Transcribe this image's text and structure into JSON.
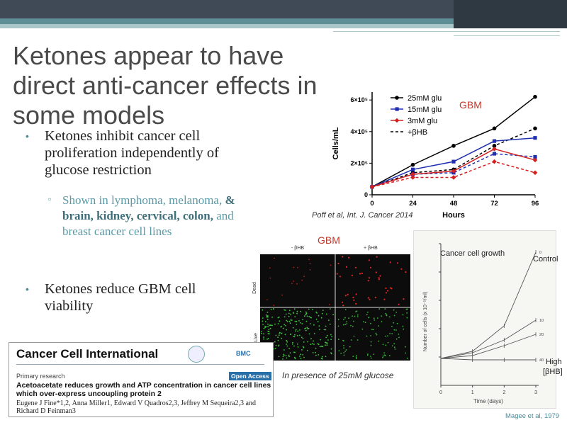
{
  "slide": {
    "title": "Ketones appear to have direct anti-cancer effects in some models",
    "bullets": [
      {
        "text": "Ketones inhibit cancer cell proliferation independently of glucose restriction"
      },
      {
        "text": "Ketones reduce GBM cell viability"
      }
    ],
    "sub_bullet": {
      "pre": "Shown in lymphoma, melanoma,",
      "bold": "& brain, kidney, cervical, colon,",
      "post": "and breast cancer cell lines"
    },
    "sub_marker": "▫",
    "bullet_marker": "•"
  },
  "chart_top": {
    "label": "GBM",
    "citation": "Poff et al, Int. J. Cancer 2014",
    "chart_data": {
      "type": "line",
      "xlabel": "Hours",
      "ylabel": "Cells/mL",
      "x": [
        0,
        24,
        48,
        72,
        96
      ],
      "x_ticks": [
        "0",
        "24",
        "48",
        "72",
        "96"
      ],
      "y_ticks": [
        "0",
        "2×10⁵",
        "4×10⁵",
        "6×10⁵"
      ],
      "ylim": [
        0,
        650000
      ],
      "legend_placement": "top-left",
      "series": [
        {
          "name": "25mM glu",
          "values": [
            50000,
            190000,
            310000,
            420000,
            620000
          ],
          "color": "#000000"
        },
        {
          "name": "25mM glu +βHB",
          "values": [
            50000,
            140000,
            160000,
            310000,
            420000
          ],
          "color": "#000000"
        },
        {
          "name": "15mM glu",
          "values": [
            50000,
            160000,
            210000,
            340000,
            360000
          ],
          "color": "#1f2fb0"
        },
        {
          "name": "15mM glu +βHB",
          "values": [
            50000,
            130000,
            140000,
            260000,
            240000
          ],
          "color": "#1f2fb0"
        },
        {
          "name": "3mM glu",
          "values": [
            50000,
            130000,
            150000,
            290000,
            220000
          ],
          "color": "#d42020"
        },
        {
          "name": "3mM glu +βHB",
          "values": [
            50000,
            110000,
            110000,
            210000,
            140000
          ],
          "color": "#d42020"
        }
      ],
      "legend": [
        "25mM glu",
        "15mM glu",
        "3mM glu",
        "+βHB"
      ]
    }
  },
  "micrograph": {
    "label": "GBM",
    "col_minus": "- βHB",
    "col_plus": "+ βHB",
    "row_dead": "Dead",
    "row_live": "Live",
    "caption": "In presence of 25mM glucose"
  },
  "chart_bottom": {
    "title": "Cancer cell growth",
    "control_label": "Control",
    "high_label": "High",
    "bhb_label": "[βHB]",
    "citation": "Magee et al, 1979",
    "chart_data": {
      "type": "line",
      "xlabel": "Time (days)",
      "ylabel": "Number of cells (x 10⁻⁵/ml)",
      "x": [
        0,
        1,
        2,
        3
      ],
      "x_ticks": [
        "0",
        "1",
        "2",
        "3"
      ],
      "y_ticks": [
        "2",
        "4",
        "6",
        "8",
        "10"
      ],
      "ylim": [
        0,
        10
      ],
      "series": [
        {
          "name": "0",
          "values": [
            null,
            2.4,
            4.2,
            9.4
          ]
        },
        {
          "name": "10",
          "values": [
            null,
            2.3,
            3.2,
            4.6
          ]
        },
        {
          "name": "20",
          "values": [
            null,
            2.1,
            2.8,
            3.6
          ]
        },
        {
          "name": "40",
          "values": [
            null,
            1.8,
            1.8,
            1.8
          ]
        }
      ],
      "series_start": 1.9
    }
  },
  "paper": {
    "journal": "Cancer Cell International",
    "section": "Primary research",
    "badge": "Open Access",
    "article_title": "Acetoacetate reduces growth and ATP concentration in cancer cell lines which over-express uncoupling protein 2",
    "authors": "Eugene J Fine*1,2, Anna Miller1, Edward V Quadros2,3, Jeffrey M Sequeira2,3 and Richard D Feinman3"
  }
}
